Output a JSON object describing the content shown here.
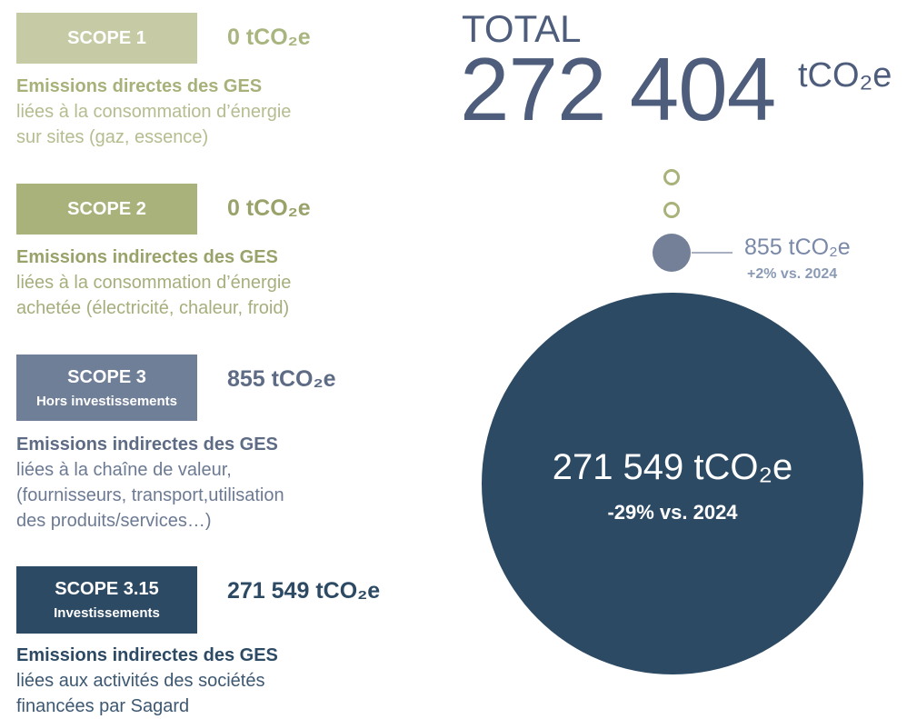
{
  "scopes": [
    {
      "label": "SCOPE 1",
      "value": "0 tCO₂e",
      "heading": "Emissions directes des GES",
      "description": [
        "liées à la consommation d’énergie",
        "sur sites (gaz, essence)"
      ]
    },
    {
      "label": "SCOPE 2",
      "value": "0 tCO₂e",
      "heading": "Emissions indirectes des GES",
      "description": [
        "liées à la consommation d’énergie",
        "achetée (électricité, chaleur, froid)"
      ]
    },
    {
      "label": "SCOPE 3",
      "sublabel": "Hors investissements",
      "value": "855 tCO₂e",
      "heading": "Emissions indirectes des GES",
      "description": [
        "liées à la chaîne de valeur,",
        "(fournisseurs, transport,utilisation",
        "des produits/services…)"
      ]
    },
    {
      "label": "SCOPE 3.15",
      "sublabel": "Investissements",
      "value": "271 549 tCO₂e",
      "heading": "Emissions indirectes des GES",
      "description": [
        "liées aux activités des sociétés",
        "financées par Sagard"
      ]
    }
  ],
  "total": {
    "label": "TOTAL",
    "value": "272 404",
    "unit": "tCO₂e"
  },
  "bubbles": {
    "small": {
      "value": "855 tCO₂e",
      "change": "+2% vs. 2024"
    },
    "large": {
      "value": "271 549 tCO₂e",
      "change": "-29% vs. 2024"
    }
  }
}
